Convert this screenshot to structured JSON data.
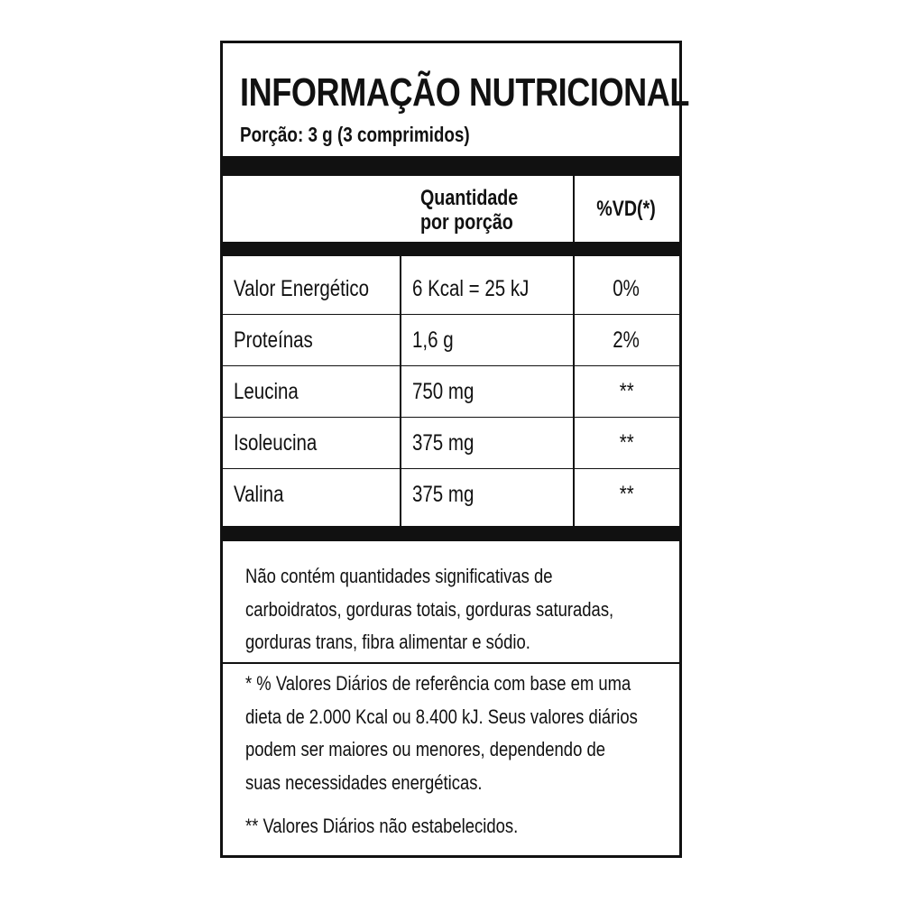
{
  "title": "INFORMAÇÃO NUTRICIONAL",
  "portion": "Porção: 3 g (3 comprimidos)",
  "table": {
    "headers": {
      "quantity_line1": "Quantidade",
      "quantity_line2": "por porção",
      "dv": "%VD(*)"
    },
    "rows": [
      {
        "name": "Valor Energético",
        "quantity": "6 Kcal = 25 kJ",
        "dv": "0%"
      },
      {
        "name": "Proteínas",
        "quantity": "1,6 g",
        "dv": "2%"
      },
      {
        "name": "Leucina",
        "quantity": "750 mg",
        "dv": "**"
      },
      {
        "name": "Isoleucina",
        "quantity": "375 mg",
        "dv": "**"
      },
      {
        "name": "Valina",
        "quantity": "375 mg",
        "dv": "**"
      }
    ]
  },
  "notes": {
    "not_contained": [
      "Não contém quantidades significativas de",
      "carboidratos, gorduras totais, gorduras saturadas,",
      "gorduras trans, fibra alimentar e sódio."
    ],
    "footnote1": [
      "* % Valores Diários de referência com base em uma",
      "dieta de 2.000 Kcal ou 8.400 kJ. Seus valores diários",
      "podem ser maiores ou menores, dependendo de",
      "suas necessidades energéticas."
    ],
    "footnote2": "** Valores Diários não estabelecidos."
  }
}
